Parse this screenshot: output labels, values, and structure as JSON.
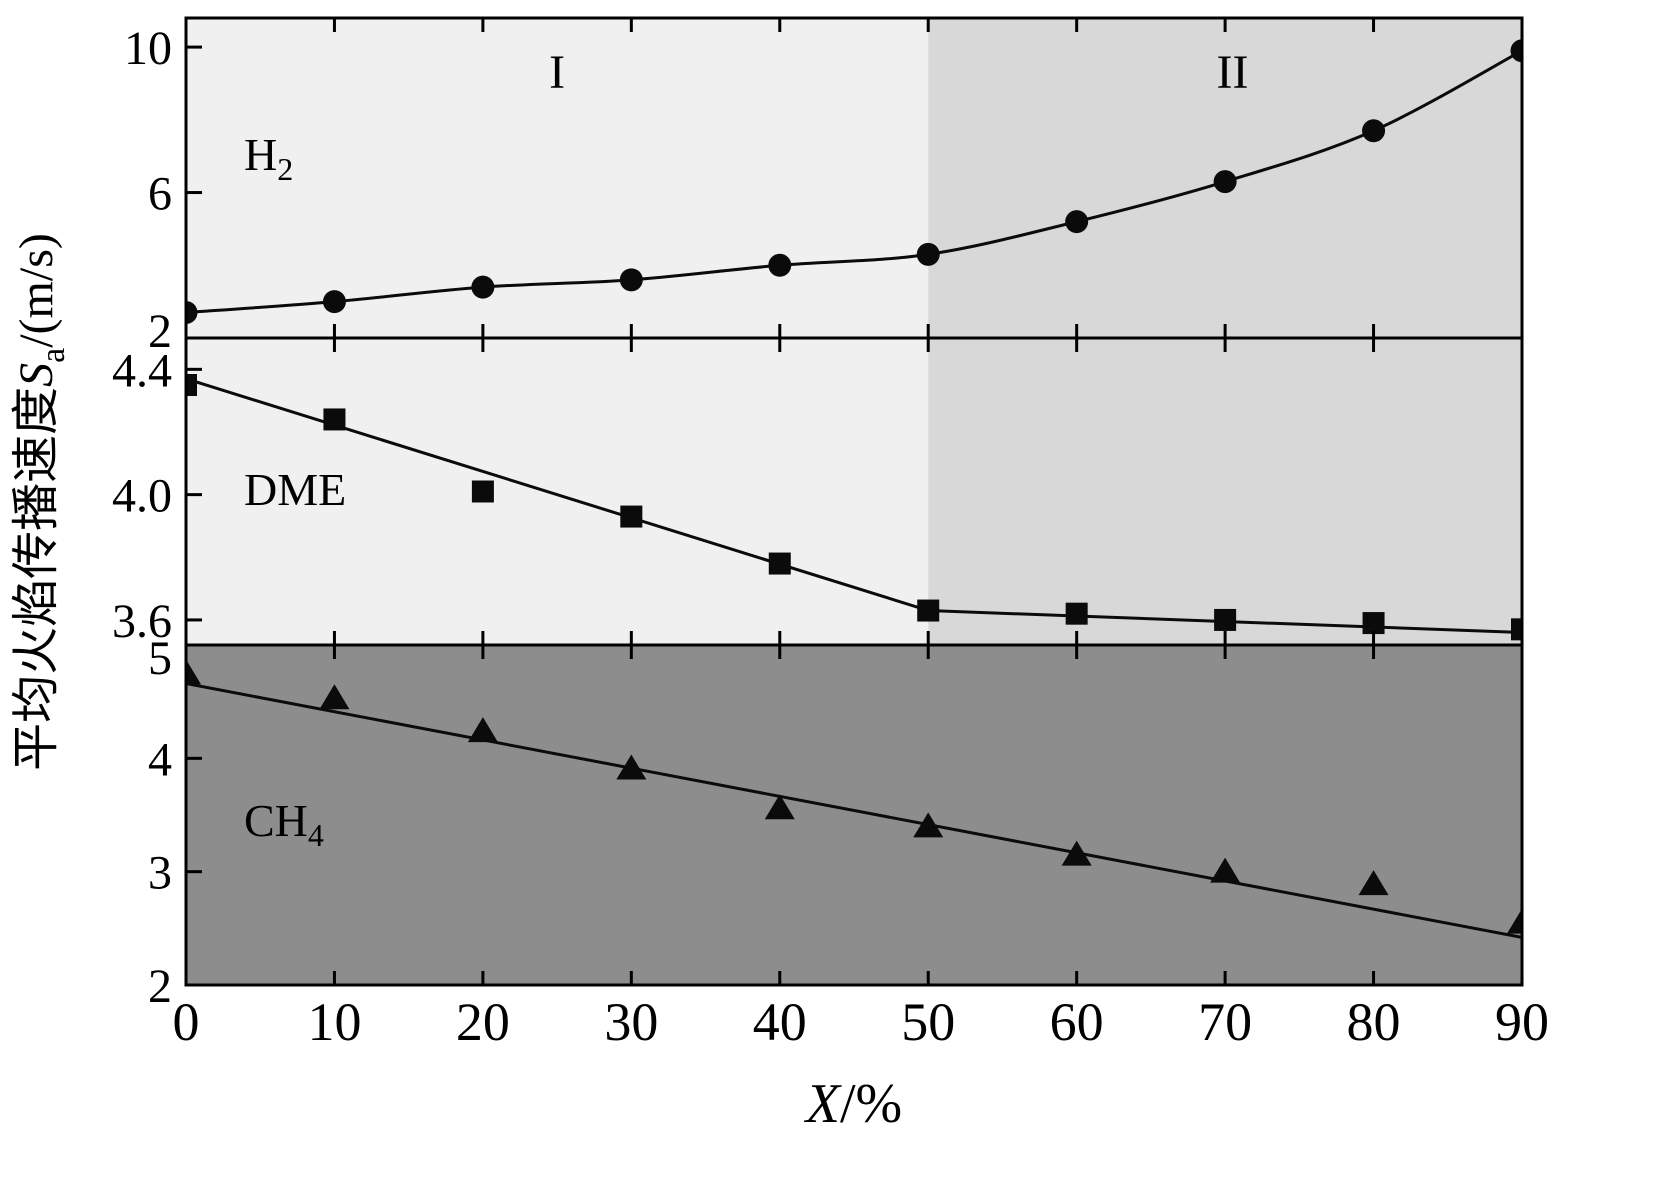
{
  "figure": {
    "ylabel": {
      "prefix": "平均火焰传播速度",
      "symbol": "S",
      "subscript": "a",
      "suffix": "/(m/s)"
    },
    "xlabel": {
      "symbol": "X",
      "suffix": "/%"
    }
  },
  "chart_data": {
    "type": "line",
    "title": "",
    "xlabel": "X/%",
    "ylabel": "平均火焰传播速度Sa/(m/s)",
    "xlim": [
      0,
      90
    ],
    "xticks": [
      0,
      10,
      20,
      30,
      40,
      50,
      60,
      70,
      80,
      90
    ],
    "x": [
      0,
      10,
      20,
      30,
      40,
      50,
      60,
      70,
      80,
      90
    ],
    "grid": false,
    "legend": "none",
    "regions": [
      {
        "label": "I",
        "x_range": [
          0,
          50
        ],
        "fill": "#f0f0f0",
        "label_x": 25
      },
      {
        "label": "II",
        "x_range": [
          50,
          90
        ],
        "fill": "#d8d8d8",
        "label_x": 70.5
      }
    ],
    "panels": [
      {
        "label": "H2",
        "marker": "circle",
        "region_shading": true,
        "ylim": [
          2,
          10.8
        ],
        "yticks": [
          2,
          6,
          10
        ],
        "ytick_labels": [
          "2",
          "6",
          "10"
        ],
        "values": [
          2.7,
          3.0,
          3.4,
          3.6,
          4.0,
          4.3,
          5.2,
          6.3,
          7.7,
          9.9
        ],
        "connect_points": true
      },
      {
        "label": "DME",
        "marker": "square",
        "region_shading": true,
        "ylim": [
          3.52,
          4.5
        ],
        "yticks": [
          3.6,
          4.0,
          4.4
        ],
        "ytick_labels": [
          "3.6",
          "4.0",
          "4.4"
        ],
        "values": [
          4.35,
          4.24,
          4.01,
          3.93,
          3.78,
          3.63,
          3.62,
          3.6,
          3.59,
          3.57
        ],
        "trend": [
          [
            0,
            4.37
          ],
          [
            50,
            3.63
          ],
          [
            90,
            3.56
          ]
        ]
      },
      {
        "label": "CH4",
        "marker": "triangle",
        "region_shading": false,
        "fill": "#8d8d8d",
        "ylim": [
          2,
          5
        ],
        "yticks": [
          2,
          3,
          4,
          5
        ],
        "ytick_labels": [
          "2",
          "3",
          "4",
          "5"
        ],
        "values": [
          4.75,
          4.53,
          4.24,
          3.91,
          3.56,
          3.4,
          3.15,
          3.0,
          2.89,
          2.55
        ],
        "trend": [
          [
            0,
            4.66
          ],
          [
            90,
            2.42
          ]
        ]
      }
    ]
  }
}
